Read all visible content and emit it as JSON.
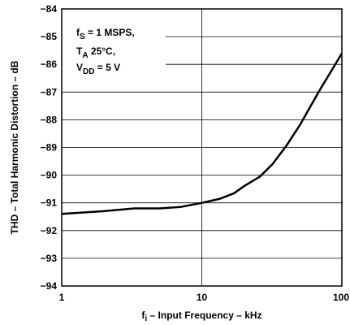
{
  "chart_data": {
    "type": "line",
    "title": "",
    "xlabel": {
      "main": "f",
      "sub": "i",
      "rest": " – Input Frequency – kHz"
    },
    "ylabel": "THD – Total Harmonic Distortion – dB",
    "x_scale": "log",
    "xlim": [
      1,
      100
    ],
    "ylim": [
      -94,
      -84
    ],
    "x_ticks": [
      {
        "value": 1,
        "label": "1"
      },
      {
        "value": 10,
        "label": "10"
      },
      {
        "value": 100,
        "label": "100"
      }
    ],
    "y_ticks": [
      {
        "value": -84,
        "label": "−84"
      },
      {
        "value": -85,
        "label": "−85"
      },
      {
        "value": -86,
        "label": "−86"
      },
      {
        "value": -87,
        "label": "−87"
      },
      {
        "value": -88,
        "label": "−88"
      },
      {
        "value": -89,
        "label": "−89"
      },
      {
        "value": -90,
        "label": "−90"
      },
      {
        "value": -91,
        "label": "−91"
      },
      {
        "value": -92,
        "label": "−92"
      },
      {
        "value": -93,
        "label": "−93"
      },
      {
        "value": -94,
        "label": "−94"
      }
    ],
    "grid": {
      "horizontal": true,
      "vertical_at": [
        10
      ]
    },
    "legend_box": {
      "placement": "top-left",
      "lines": [
        [
          {
            "t": "f"
          },
          {
            "t": "S",
            "sub": true
          },
          {
            "t": " = 1 MSPS,"
          }
        ],
        [
          {
            "t": "T"
          },
          {
            "t": "A",
            "sub": true
          },
          {
            "t": " 25°C,"
          }
        ],
        [
          {
            "t": "V"
          },
          {
            "t": "DD",
            "sub": true
          },
          {
            "t": " = 5 V"
          }
        ]
      ]
    },
    "series": [
      {
        "x": [
          1,
          2,
          3.3,
          5,
          7,
          10,
          13.5,
          17,
          20,
          26,
          32,
          40,
          50,
          60,
          70,
          85,
          100
        ],
        "y": [
          -91.4,
          -91.3,
          -91.2,
          -91.2,
          -91.15,
          -91.0,
          -90.85,
          -90.65,
          -90.4,
          -90.05,
          -89.6,
          -88.95,
          -88.2,
          -87.5,
          -86.9,
          -86.2,
          -85.6
        ]
      }
    ]
  }
}
